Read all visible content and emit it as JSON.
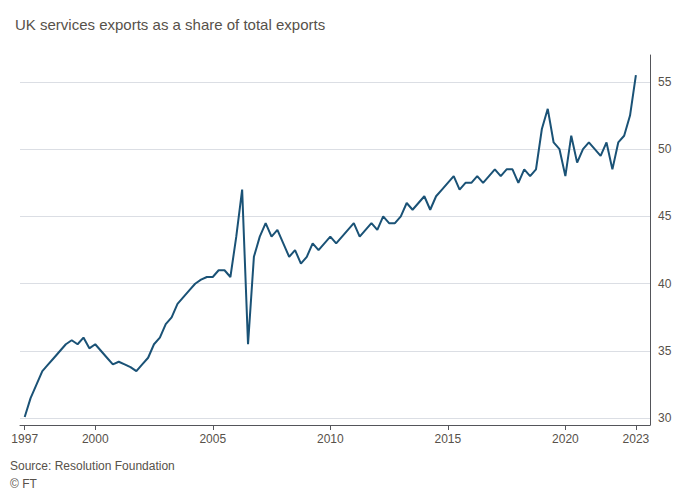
{
  "chart_data": {
    "type": "line",
    "title": "UK services exports as a share of total exports",
    "annotations": [
      "Source: Resolution Foundation",
      "© FT"
    ],
    "color": "#1a5276",
    "grid": true,
    "xlim": [
      1996.8,
      2023.6
    ],
    "xticks": [
      1997,
      2000,
      2005,
      2010,
      2015,
      2020,
      2023
    ],
    "ylim": [
      29.5,
      57
    ],
    "yticks": [
      30,
      35,
      40,
      45,
      50,
      55
    ],
    "x": [
      1997.0,
      1997.25,
      1997.5,
      1997.75,
      1998.0,
      1998.25,
      1998.5,
      1998.75,
      1999.0,
      1999.25,
      1999.5,
      1999.75,
      2000.0,
      2000.25,
      2000.5,
      2000.75,
      2001.0,
      2001.25,
      2001.5,
      2001.75,
      2002.0,
      2002.25,
      2002.5,
      2002.75,
      2003.0,
      2003.25,
      2003.5,
      2003.75,
      2004.0,
      2004.25,
      2004.5,
      2004.75,
      2005.0,
      2005.25,
      2005.5,
      2005.75,
      2006.0,
      2006.25,
      2006.5,
      2006.75,
      2007.0,
      2007.25,
      2007.5,
      2007.75,
      2008.0,
      2008.25,
      2008.5,
      2008.75,
      2009.0,
      2009.25,
      2009.5,
      2009.75,
      2010.0,
      2010.25,
      2010.5,
      2010.75,
      2011.0,
      2011.25,
      2011.5,
      2011.75,
      2012.0,
      2012.25,
      2012.5,
      2012.75,
      2013.0,
      2013.25,
      2013.5,
      2013.75,
      2014.0,
      2014.25,
      2014.5,
      2014.75,
      2015.0,
      2015.25,
      2015.5,
      2015.75,
      2016.0,
      2016.25,
      2016.5,
      2016.75,
      2017.0,
      2017.25,
      2017.5,
      2017.75,
      2018.0,
      2018.25,
      2018.5,
      2018.75,
      2019.0,
      2019.25,
      2019.5,
      2019.75,
      2020.0,
      2020.25,
      2020.5,
      2020.75,
      2021.0,
      2021.25,
      2021.5,
      2021.75,
      2022.0,
      2022.25,
      2022.5,
      2022.75,
      2023.0
    ],
    "values": [
      30.1,
      31.5,
      32.5,
      33.5,
      34.0,
      34.5,
      35.0,
      35.5,
      35.8,
      35.5,
      36.0,
      35.2,
      35.5,
      35.0,
      34.5,
      34.0,
      34.2,
      34.0,
      33.8,
      33.5,
      34.0,
      34.5,
      35.5,
      36.0,
      37.0,
      37.5,
      38.5,
      39.0,
      39.5,
      40.0,
      40.3,
      40.5,
      40.5,
      41.0,
      41.0,
      40.5,
      43.5,
      47.0,
      35.5,
      42.0,
      43.5,
      44.5,
      43.5,
      44.0,
      43.0,
      42.0,
      42.5,
      41.5,
      42.0,
      43.0,
      42.5,
      43.0,
      43.5,
      43.0,
      43.5,
      44.0,
      44.5,
      43.5,
      44.0,
      44.5,
      44.0,
      45.0,
      44.5,
      44.5,
      45.0,
      46.0,
      45.5,
      46.0,
      46.5,
      45.5,
      46.5,
      47.0,
      47.5,
      48.0,
      47.0,
      47.5,
      47.5,
      48.0,
      47.5,
      48.0,
      48.5,
      48.0,
      48.5,
      48.5,
      47.5,
      48.5,
      48.0,
      48.5,
      51.5,
      53.0,
      50.5,
      50.0,
      48.0,
      51.0,
      49.0,
      50.0,
      50.5,
      50.0,
      49.5,
      50.5,
      48.5,
      50.5,
      51.0,
      52.5,
      55.5
    ]
  }
}
